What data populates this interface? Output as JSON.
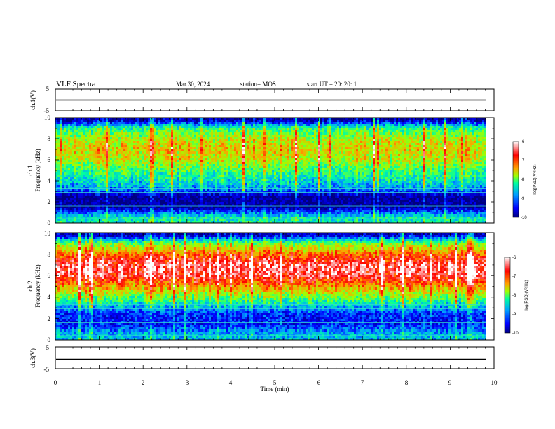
{
  "header": {
    "title": "VLF Spectra",
    "date": "Mar.30, 2024",
    "station": "station= MOS",
    "start": "start  UT  =   20: 20: 1"
  },
  "chart_data": [
    {
      "type": "line",
      "ylabel": "ch.1(V)",
      "ylim": [
        -5,
        5
      ],
      "yticks": [
        "5",
        "-5"
      ],
      "series": [
        {
          "values": [
            0,
            0
          ]
        }
      ],
      "xlim": [
        0,
        9.85
      ]
    },
    {
      "type": "heatmap",
      "ylabel_top": "ch.1",
      "ylabel": "Frequency (kHz)",
      "ylim": [
        0,
        10
      ],
      "yticks": [
        "0",
        "2",
        "4",
        "6",
        "8",
        "10"
      ],
      "intensity_profile": [
        {
          "freq_khz": 0.5,
          "log_psd": -8.4
        },
        {
          "freq_khz": 1.5,
          "log_psd": -9.9
        },
        {
          "freq_khz": 2.5,
          "log_psd": -9.9
        },
        {
          "freq_khz": 3.2,
          "log_psd": -8.9
        },
        {
          "freq_khz": 4.0,
          "log_psd": -8.5
        },
        {
          "freq_khz": 5.0,
          "log_psd": -8.1
        },
        {
          "freq_khz": 6.0,
          "log_psd": -7.6
        },
        {
          "freq_khz": 7.0,
          "log_psd": -7.4
        },
        {
          "freq_khz": 8.0,
          "log_psd": -7.6
        },
        {
          "freq_khz": 9.0,
          "log_psd": -8.2
        },
        {
          "freq_khz": 9.8,
          "log_psd": -9.8
        }
      ],
      "colorbar": {
        "label": "log(PSD)(V²/Hz)",
        "ticks": [
          "-6",
          "-7",
          "-8",
          "-9",
          "-10"
        ]
      }
    },
    {
      "type": "heatmap",
      "ylabel_top": "ch.2",
      "ylabel": "Frequency (kHz)",
      "ylim": [
        0,
        10
      ],
      "yticks": [
        "0",
        "2",
        "4",
        "6",
        "8",
        "10"
      ],
      "intensity_profile": [
        {
          "freq_khz": 0.5,
          "log_psd": -8.7
        },
        {
          "freq_khz": 1.5,
          "log_psd": -9.4
        },
        {
          "freq_khz": 2.5,
          "log_psd": -9.3
        },
        {
          "freq_khz": 3.2,
          "log_psd": -8.6
        },
        {
          "freq_khz": 4.0,
          "log_psd": -7.9
        },
        {
          "freq_khz": 5.0,
          "log_psd": -7.1
        },
        {
          "freq_khz": 6.0,
          "log_psd": -6.4
        },
        {
          "freq_khz": 7.0,
          "log_psd": -6.3
        },
        {
          "freq_khz": 8.0,
          "log_psd": -6.9
        },
        {
          "freq_khz": 9.0,
          "log_psd": -7.9
        },
        {
          "freq_khz": 9.8,
          "log_psd": -9.7
        }
      ],
      "colorbar": {
        "label": "log(PSD)(V²/Hz)",
        "ticks": [
          "-6",
          "-7",
          "-8",
          "-9",
          "-10"
        ]
      }
    },
    {
      "type": "line",
      "ylabel": "ch.3(V)",
      "ylim": [
        -5,
        5
      ],
      "yticks": [
        "5",
        "-5"
      ],
      "series": [
        {
          "values": [
            0,
            0
          ]
        }
      ],
      "xlim": [
        0,
        9.85
      ]
    }
  ],
  "xaxis": {
    "label": "Time (min)",
    "lim": [
      0,
      10
    ],
    "ticks": [
      "0",
      "1",
      "2",
      "3",
      "4",
      "5",
      "6",
      "7",
      "8",
      "9",
      "10"
    ]
  },
  "colors": {
    "colormap": [
      "#000080",
      "#0000ff",
      "#00a0ff",
      "#00ffa0",
      "#a0ff00",
      "#ffa000",
      "#ff0000",
      "#ffffff"
    ]
  }
}
